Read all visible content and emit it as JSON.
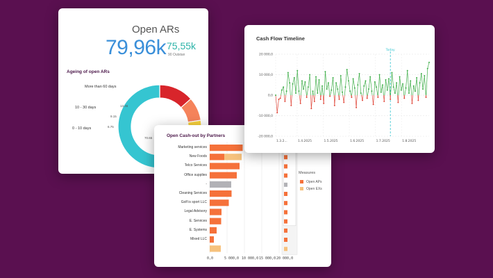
{
  "open_ars": {
    "title": "Open ARs",
    "value": "79,96k",
    "secondary_value": "75,55k",
    "secondary_label": "90 Outstan",
    "ageing_title": "Ageing of open ARs",
    "chart_data": {
      "type": "pie",
      "categories": [
        "More than 60 days",
        "10 - 30 days",
        "0 - 10 days",
        ""
      ],
      "values": [
        13.46,
        9.15,
        6.75,
        70.65
      ],
      "value_labels": [
        "13.46",
        "9.15",
        "6.75",
        "70.65"
      ],
      "colors": [
        "#d8252b",
        "#f5835b",
        "#f9d23c",
        "#35c5d1"
      ]
    }
  },
  "cash_flow": {
    "title": "Cash Flow Timeline",
    "today_label": "Today",
    "chart_data": {
      "type": "line",
      "y_ticks": [
        "20 000,0",
        "10 000,0",
        "0,0",
        "-10 000,0",
        "-20 000,0"
      ],
      "ylim": [
        -20000,
        20000
      ],
      "x_ticks": [
        "1.3.2...",
        "1.4.2025",
        "1.5.2025",
        "1.6.2025",
        "1.7.2025",
        "1.8.2025"
      ],
      "today_index": 74,
      "values": [
        0,
        -8500,
        -2000,
        -1500,
        2500,
        4000,
        -3000,
        2000,
        11000,
        6000,
        -5000,
        5500,
        8500,
        1000,
        12000,
        2000,
        -4000,
        7000,
        3000,
        6500,
        -1000,
        4000,
        10000,
        -6500,
        2000,
        -3000,
        9000,
        1000,
        7500,
        -2000,
        4500,
        -4000,
        11500,
        3000,
        6000,
        -500,
        2500,
        8500,
        -5000,
        6000,
        3000,
        -2000,
        9500,
        1500,
        -3500,
        4000,
        12500,
        7000,
        2000,
        -1000,
        8000,
        3500,
        -6000,
        5000,
        10500,
        1000,
        -2500,
        4500,
        7000,
        -1500,
        3000,
        9000,
        2000,
        -4500,
        6500,
        4000,
        -1000,
        10000,
        1500,
        5000,
        -3000,
        7500,
        2500,
        8000,
        -2000,
        11000,
        4000,
        1000,
        6000,
        -3500,
        9000,
        2500,
        5500,
        -1500,
        3500,
        12000,
        1000,
        7000,
        -4000,
        4500,
        2000,
        8500,
        -2500,
        6000,
        10500,
        3000,
        9500,
        -1000,
        13000,
        16000
      ]
    }
  },
  "cash_out": {
    "title": "Open Cash-out by Partners",
    "legend_title": "Measures",
    "chart_data": {
      "type": "bar",
      "categories": [
        "Marketing services",
        "New Foods",
        "Telco Services",
        "Office supplies",
        "-",
        "Cleaning Services",
        "Golf is sport LLC",
        "Legal Advisory",
        "E. Services",
        "E. Systems",
        "Mixed LLC",
        ""
      ],
      "series": [
        {
          "name": "Open APs",
          "values": [
            9500,
            4200,
            8600,
            7800,
            0,
            6300,
            5500,
            3400,
            3300,
            2000,
            1200,
            0
          ],
          "color": "#f5713a"
        },
        {
          "name": "Open EXs",
          "values": [
            0,
            5000,
            0,
            0,
            0,
            0,
            0,
            0,
            0,
            0,
            0,
            3200
          ],
          "color": "#f6c27e"
        }
      ],
      "grey_values": [
        0,
        0,
        0,
        0,
        6200,
        0,
        0,
        0,
        0,
        0,
        0,
        0
      ],
      "x_ticks": [
        "0,0",
        "5 000,0",
        "10 000,0",
        "15 000,0",
        "20 000,0"
      ],
      "xlim": [
        0,
        20000
      ]
    }
  }
}
